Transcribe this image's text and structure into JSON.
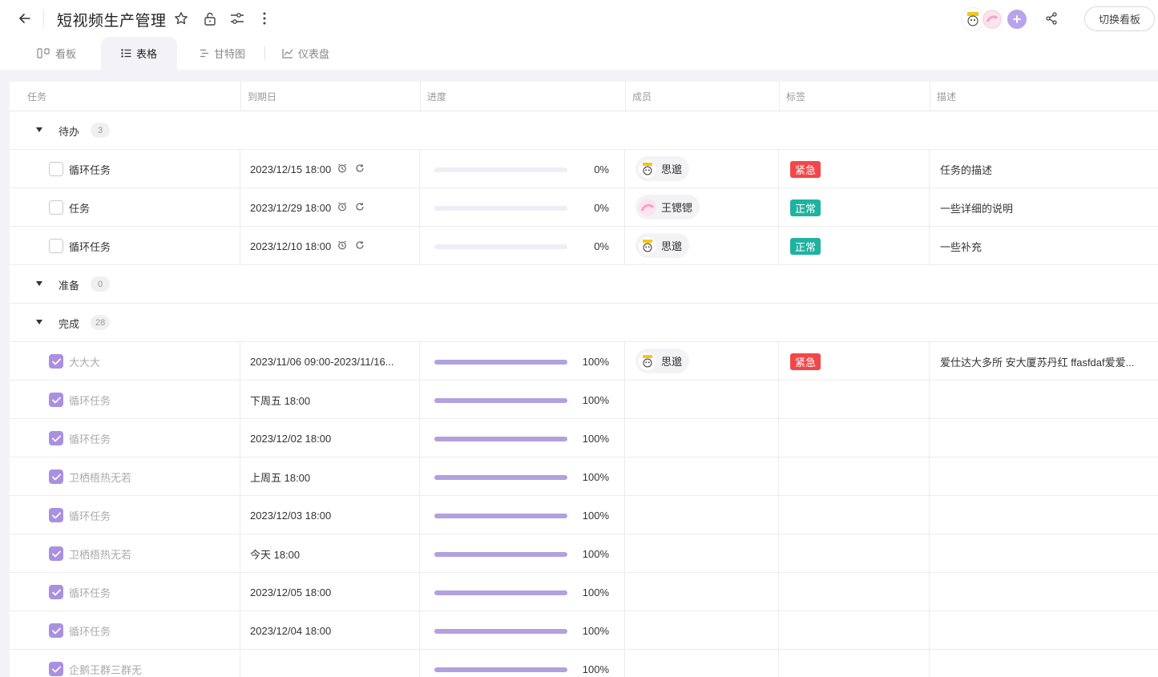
{
  "header": {
    "title": "短视频生产管理",
    "switch_label": "切换看板",
    "add_member": "+"
  },
  "tabs": [
    {
      "label": "看板",
      "icon": "kanban-icon"
    },
    {
      "label": "表格",
      "icon": "list-icon"
    },
    {
      "label": "甘特图",
      "icon": "gantt-icon"
    },
    {
      "label": "仪表盘",
      "icon": "chart-icon"
    }
  ],
  "columns": [
    "任务",
    "到期日",
    "进度",
    "成员",
    "标签",
    "描述"
  ],
  "colors": {
    "accent": "#a990e0",
    "tag_urgent": "#f2474a",
    "tag_normal": "#20b2a0"
  },
  "groups": [
    {
      "name": "待办",
      "count": "3",
      "rows": [
        {
          "task": "循环任务",
          "due": "2023/12/15 18:00",
          "progress": 0,
          "progress_label": "0%",
          "member": "思邈",
          "member_avatar": "bear",
          "tag": "紧急",
          "tag_type": "urgent",
          "desc": "任务的描述",
          "done": false,
          "icons": true
        },
        {
          "task": "任务",
          "due": "2023/12/29 18:00",
          "progress": 0,
          "progress_label": "0%",
          "member": "王锶锶",
          "member_avatar": "pink",
          "tag": "正常",
          "tag_type": "normal",
          "desc": "一些详细的说明",
          "done": false,
          "icons": true
        },
        {
          "task": "循环任务",
          "due": "2023/12/10 18:00",
          "progress": 0,
          "progress_label": "0%",
          "member": "思邈",
          "member_avatar": "bear",
          "tag": "正常",
          "tag_type": "normal",
          "desc": "一些补充",
          "done": false,
          "icons": true
        }
      ]
    },
    {
      "name": "准备",
      "count": "0",
      "rows": []
    },
    {
      "name": "完成",
      "count": "28",
      "rows": [
        {
          "task": "大大大",
          "due": "2023/11/06 09:00-2023/11/16...",
          "progress": 100,
          "progress_label": "100%",
          "member": "思邈",
          "member_avatar": "bear",
          "tag": "紧急",
          "tag_type": "urgent",
          "desc": "爱仕达大多所 安大厦苏丹红 ffasfdaf爱爱...",
          "done": true,
          "icons": false
        },
        {
          "task": "循环任务",
          "due": "下周五 18:00",
          "progress": 100,
          "progress_label": "100%",
          "member": "",
          "tag": "",
          "desc": "",
          "done": true,
          "icons": false
        },
        {
          "task": "循环任务",
          "due": "2023/12/02 18:00",
          "progress": 100,
          "progress_label": "100%",
          "member": "",
          "tag": "",
          "desc": "",
          "done": true,
          "icons": false
        },
        {
          "task": "卫栖梧热无若",
          "due": "上周五 18:00",
          "progress": 100,
          "progress_label": "100%",
          "member": "",
          "tag": "",
          "desc": "",
          "done": true,
          "icons": false
        },
        {
          "task": "循环任务",
          "due": "2023/12/03 18:00",
          "progress": 100,
          "progress_label": "100%",
          "member": "",
          "tag": "",
          "desc": "",
          "done": true,
          "icons": false
        },
        {
          "task": "卫栖梧热无若",
          "due": "今天 18:00",
          "progress": 100,
          "progress_label": "100%",
          "member": "",
          "tag": "",
          "desc": "",
          "done": true,
          "icons": false
        },
        {
          "task": "循环任务",
          "due": "2023/12/05 18:00",
          "progress": 100,
          "progress_label": "100%",
          "member": "",
          "tag": "",
          "desc": "",
          "done": true,
          "icons": false
        },
        {
          "task": "循环任务",
          "due": "2023/12/04 18:00",
          "progress": 100,
          "progress_label": "100%",
          "member": "",
          "tag": "",
          "desc": "",
          "done": true,
          "icons": false
        },
        {
          "task": "企鹅王群三群无",
          "due": "",
          "progress": 100,
          "progress_label": "100%",
          "member": "",
          "tag": "",
          "desc": "",
          "done": true,
          "icons": false
        }
      ]
    }
  ]
}
